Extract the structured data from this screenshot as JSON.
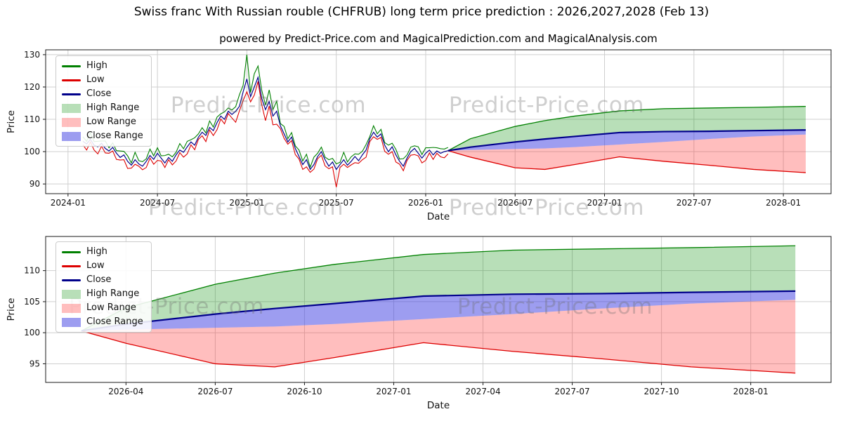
{
  "title": "Swiss franc With Russian rouble (CHFRUB) long term price prediction : 2026,2027,2028 (Feb 13)",
  "subtitle": "powered by Predict-Price.com and MagicalPrediction.com and MagicalAnalysis.com",
  "watermark": "Predict-Price.com",
  "colors": {
    "high": "#008000",
    "low": "#dd0000",
    "close": "#00008b",
    "high_range": "rgba(0,140,0,0.28)",
    "low_range": "rgba(255,40,40,0.30)",
    "close_range": "rgba(60,60,225,0.50)",
    "grid": "#cfcfcf",
    "frame": "#1a1a1a"
  },
  "legend": {
    "items": [
      {
        "label": "High",
        "swatch": "line",
        "key": "high"
      },
      {
        "label": "Low",
        "swatch": "line",
        "key": "low"
      },
      {
        "label": "Close",
        "swatch": "line",
        "key": "close"
      },
      {
        "label": "High Range",
        "swatch": "patch",
        "key": "high_range"
      },
      {
        "label": "Low Range",
        "swatch": "patch",
        "key": "low_range"
      },
      {
        "label": "Close Range",
        "swatch": "patch",
        "key": "close_range"
      }
    ]
  },
  "chart_data": [
    {
      "id": "history-and-forecast",
      "type": "line",
      "xlabel": "Date",
      "ylabel": "Price",
      "x_unit_note": "months since 2024-01",
      "xlim": [
        -1.5,
        51.2
      ],
      "ylim": [
        87,
        131.5
      ],
      "grid": true,
      "legend_position": "upper left",
      "xticks": [
        {
          "t": 0,
          "label": "2024-01"
        },
        {
          "t": 6,
          "label": "2024-07"
        },
        {
          "t": 12,
          "label": "2025-01"
        },
        {
          "t": 18,
          "label": "2025-07"
        },
        {
          "t": 24,
          "label": "2026-01"
        },
        {
          "t": 30,
          "label": "2026-07"
        },
        {
          "t": 36,
          "label": "2027-01"
        },
        {
          "t": 42,
          "label": "2027-07"
        },
        {
          "t": 48,
          "label": "2028-01"
        }
      ],
      "yticks": [
        90,
        100,
        110,
        120,
        130
      ],
      "history": {
        "t_start": 1.0,
        "t_step": 0.25,
        "close": [
          103.2,
          102.4,
          103.8,
          102.0,
          101.5,
          102.6,
          101.0,
          100.2,
          101.3,
          99.5,
          98.2,
          99.0,
          97.0,
          95.8,
          97.5,
          96.2,
          95.5,
          97.0,
          98.8,
          97.6,
          99.5,
          98.0,
          96.5,
          98.2,
          97.0,
          99.0,
          100.5,
          99.8,
          101.5,
          103.0,
          102.0,
          104.5,
          106.0,
          105.0,
          107.5,
          106.5,
          109.0,
          111.0,
          110.0,
          112.5,
          111.5,
          112.5,
          114.0,
          118.5,
          122.5,
          117.0,
          120.0,
          123.0,
          116.5,
          113.0,
          115.5,
          111.0,
          112.5,
          108.0,
          105.5,
          103.0,
          104.5,
          101.0,
          98.5,
          96.0,
          97.5,
          94.5,
          96.0,
          98.5,
          100.0,
          97.5,
          95.5,
          96.8,
          94.5,
          96.0,
          97.5,
          95.8,
          97.0,
          98.5,
          97.2,
          99.0,
          100.5,
          104.0,
          106.0,
          104.5,
          105.5,
          102.0,
          100.0,
          101.5,
          99.0,
          97.0,
          95.5,
          98.0,
          100.0,
          101.0,
          99.5,
          98.0,
          99.5,
          100.5,
          99.0,
          100.2,
          99.5,
          100.0,
          100.3
        ],
        "high": [
          104.6,
          103.2,
          105.8,
          103.1,
          103.2,
          103.3,
          103.3,
          101.2,
          102.7,
          100.3,
          100.2,
          100.1,
          98.7,
          96.5,
          99.8,
          97.2,
          96.9,
          97.8,
          100.8,
          98.7,
          101.2,
          98.7,
          98.8,
          99.2,
          98.4,
          99.8,
          102.5,
          100.9,
          103.2,
          103.7,
          104.3,
          105.5,
          107.4,
          105.8,
          109.5,
          107.6,
          110.7,
          111.7,
          112.3,
          113.5,
          112.9,
          113.9,
          117.6,
          120.5,
          130.0,
          118.3,
          124.1,
          126.5,
          119.0,
          114.4,
          119.1,
          113.0,
          115.6,
          108.7,
          107.8,
          104.0,
          105.9,
          101.8,
          100.5,
          97.1,
          99.2,
          95.2,
          98.3,
          99.5,
          101.4,
          98.3,
          97.5,
          97.9,
          96.2,
          96.7,
          99.8,
          96.8,
          98.4,
          99.3,
          99.2,
          100.1,
          102.2,
          104.7,
          108.0,
          105.5,
          106.9,
          102.8,
          102.0,
          102.6,
          100.7,
          97.7,
          97.8,
          99.0,
          101.4,
          101.8,
          101.5,
          99.1,
          101.2,
          101.2,
          101.3,
          101.2,
          100.9,
          100.8,
          101.3
        ],
        "low": [
          102.1,
          100.5,
          103.0,
          100.5,
          99.3,
          101.7,
          99.6,
          99.5,
          100.2,
          97.6,
          97.4,
          97.5,
          94.8,
          94.9,
          96.1,
          95.5,
          94.4,
          95.1,
          98.0,
          96.1,
          97.3,
          97.1,
          95.1,
          97.5,
          95.9,
          97.1,
          99.7,
          98.3,
          99.3,
          102.1,
          100.6,
          103.8,
          104.9,
          103.1,
          106.7,
          105.0,
          106.8,
          110.1,
          108.6,
          111.8,
          110.4,
          109.1,
          112.6,
          115.8,
          118.5,
          115.4,
          117.5,
          121.7,
          114.5,
          109.6,
          114.1,
          108.3,
          108.5,
          107.1,
          104.1,
          102.3,
          103.4,
          99.1,
          97.7,
          94.5,
          95.3,
          93.6,
          94.6,
          97.8,
          98.9,
          95.6,
          94.7,
          95.3,
          89.0,
          95.1,
          96.1,
          95.1,
          95.9,
          96.6,
          96.4,
          97.5,
          98.3,
          103.1,
          104.6,
          103.8,
          104.4,
          100.1,
          99.2,
          100.0,
          96.8,
          96.1,
          94.1,
          97.3,
          98.9,
          99.1,
          98.7,
          96.5,
          97.3,
          99.6,
          97.6,
          99.5,
          98.4,
          98.1,
          99.3
        ]
      },
      "forecast": {
        "t": [
          25.5,
          27,
          30,
          32,
          34,
          37,
          40,
          43,
          46,
          49.5
        ],
        "close": [
          100.3,
          101.4,
          103.0,
          103.9,
          104.7,
          105.9,
          106.2,
          106.3,
          106.5,
          106.7
        ],
        "high": [
          100.3,
          104.0,
          107.8,
          109.6,
          111.0,
          112.6,
          113.3,
          113.5,
          113.7,
          114.0
        ],
        "low": [
          100.3,
          98.3,
          95.0,
          94.5,
          96.0,
          98.4,
          97.0,
          95.8,
          94.5,
          93.5
        ],
        "close_band_low": [
          100.3,
          100.5,
          100.8,
          101.0,
          101.4,
          102.2,
          103.0,
          103.9,
          104.7,
          105.3
        ]
      }
    },
    {
      "id": "forecast-zoom",
      "type": "line",
      "xlabel": "Date",
      "ylabel": "Price",
      "x_unit_note": "months since 2024-01",
      "xlim": [
        24.3,
        50.7
      ],
      "ylim": [
        92,
        115.5
      ],
      "grid": true,
      "legend_position": "upper left",
      "xticks": [
        {
          "t": 27,
          "label": "2026-04"
        },
        {
          "t": 30,
          "label": "2026-07"
        },
        {
          "t": 33,
          "label": "2026-10"
        },
        {
          "t": 36,
          "label": "2027-01"
        },
        {
          "t": 39,
          "label": "2027-04"
        },
        {
          "t": 42,
          "label": "2027-07"
        },
        {
          "t": 45,
          "label": "2027-10"
        },
        {
          "t": 48,
          "label": "2028-01"
        }
      ],
      "yticks": [
        95,
        100,
        105,
        110
      ],
      "forecast": {
        "t": [
          25.5,
          27,
          30,
          32,
          34,
          37,
          40,
          43,
          46,
          49.5
        ],
        "close": [
          100.3,
          101.4,
          103.0,
          103.9,
          104.7,
          105.9,
          106.2,
          106.3,
          106.5,
          106.7
        ],
        "high": [
          100.3,
          104.0,
          107.8,
          109.6,
          111.0,
          112.6,
          113.3,
          113.5,
          113.7,
          114.0
        ],
        "low": [
          100.3,
          98.3,
          95.0,
          94.5,
          96.0,
          98.4,
          97.0,
          95.8,
          94.5,
          93.5
        ],
        "close_band_low": [
          100.3,
          100.5,
          100.8,
          101.0,
          101.4,
          102.2,
          103.0,
          103.9,
          104.7,
          105.3
        ]
      }
    }
  ]
}
